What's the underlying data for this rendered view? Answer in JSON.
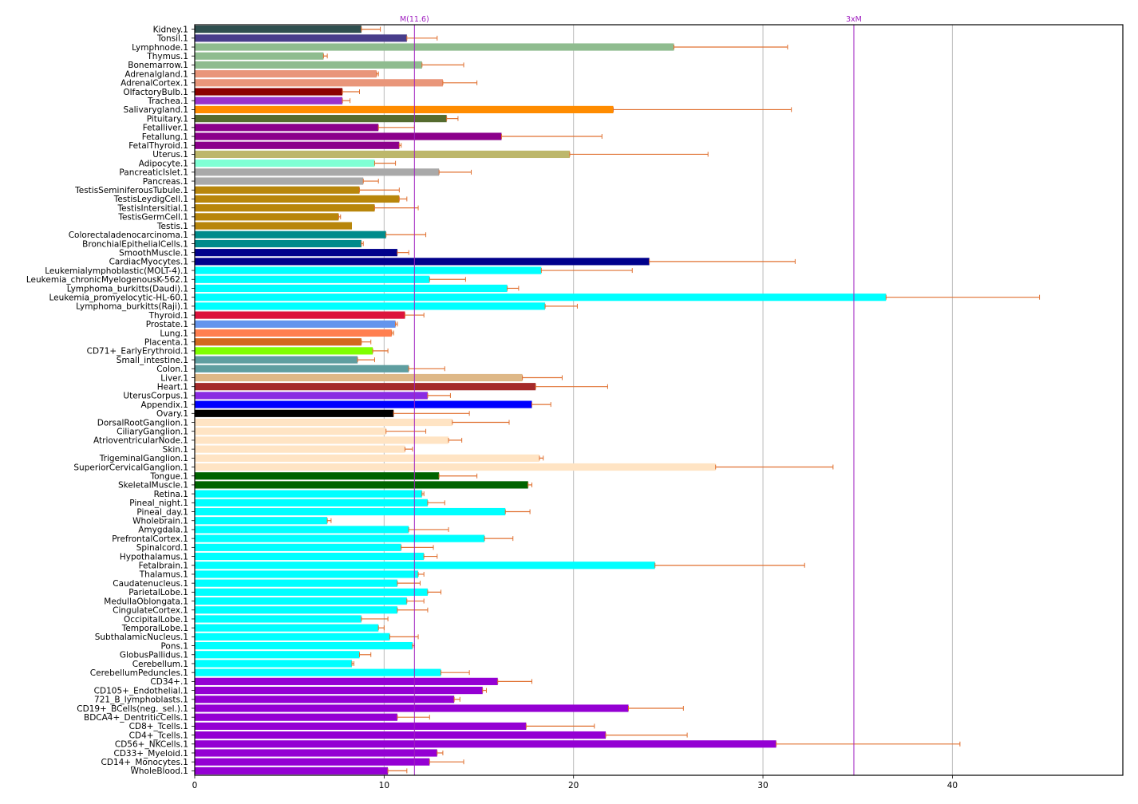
{
  "chart_data": {
    "type": "bar",
    "orientation": "horizontal",
    "title": "",
    "xlabel": "",
    "ylabel": "",
    "xlim": [
      0,
      49
    ],
    "xticks": [
      0,
      10,
      20,
      30,
      40
    ],
    "grid": "vertical",
    "legend": "none",
    "error_bar_color": "#e07030",
    "grid_color": "#bbbbbb",
    "reference_lines": [
      {
        "label": "M(11.6)",
        "value": 11.6,
        "color": "#a020c0"
      },
      {
        "label": "3xM",
        "value": 34.8,
        "color": "#a020c0"
      }
    ],
    "categories": [
      "Kidney.1",
      "Tonsil.1",
      "Lymphnode.1",
      "Thymus.1",
      "Bonemarrow.1",
      "Adrenalgland.1",
      "AdrenalCortex.1",
      "OlfactoryBulb.1",
      "Trachea.1",
      "Salivarygland.1",
      "Pituitary.1",
      "Fetalliver.1",
      "Fetallung.1",
      "FetalThyroid.1",
      "Uterus.1",
      "Adipocyte.1",
      "PancreaticIslet.1",
      "Pancreas.1",
      "TestisSeminiferousTubule.1",
      "TestisLeydigCell.1",
      "TestisIntersitial.1",
      "TestisGermCell.1",
      "Testis.1",
      "Colorectaladenocarcinoma.1",
      "BronchialEpithelialCells.1",
      "SmoothMuscle.1",
      "CardiacMyocytes.1",
      "Leukemialymphoblastic(MOLT-4).1",
      "Leukemia_chronicMyelogenousK-562.1",
      "Lymphoma_burkitts(Daudi).1",
      "Leukemia_promyelocytic-HL-60.1",
      "Lymphoma_burkitts(Raji).1",
      "Thyroid.1",
      "Prostate.1",
      "Lung.1",
      "Placenta.1",
      "CD71+_EarlyErythroid.1",
      "Small_intestine.1",
      "Colon.1",
      "Liver.1",
      "Heart.1",
      "UterusCorpus.1",
      "Appendix.1",
      "Ovary.1",
      "DorsalRootGanglion.1",
      "CiliaryGanglion.1",
      "AtrioventricularNode.1",
      "Skin.1",
      "TrigeminalGanglion.1",
      "SuperiorCervicalGanglion.1",
      "Tongue.1",
      "SkeletalMuscle.1",
      "Retina.1",
      "Pineal_night.1",
      "Pineal_day.1",
      "Wholebrain.1",
      "Amygdala.1",
      "PrefrontalCortex.1",
      "Spinalcord.1",
      "Hypothalamus.1",
      "Fetalbrain.1",
      "Thalamus.1",
      "Caudatenucleus.1",
      "ParietalLobe.1",
      "MedullaOblongata.1",
      "CingulateCortex.1",
      "OccipitalLobe.1",
      "TemporalLobe.1",
      "SubthalamicNucleus.1",
      "Pons.1",
      "GlobusPallidus.1",
      "Cerebellum.1",
      "CerebellumPeduncles.1",
      "CD34+.1",
      "CD105+_Endothelial.1",
      "721_B_lymphoblasts.1",
      "CD19+_BCells(neg._sel.).1",
      "BDCA4+_DentriticCells.1",
      "CD8+_Tcells.1",
      "CD4+_Tcells.1",
      "CD56+_NKCells.1",
      "CD33+_Myeloid.1",
      "CD14+_Monocytes.1",
      "WholeBlood.1"
    ],
    "values": [
      8.8,
      11.2,
      25.3,
      6.8,
      12.0,
      9.6,
      13.1,
      7.8,
      7.8,
      22.1,
      13.3,
      9.7,
      16.2,
      10.8,
      19.8,
      9.5,
      12.9,
      8.9,
      8.7,
      10.8,
      9.5,
      7.6,
      8.3,
      10.1,
      8.8,
      10.7,
      24.0,
      18.3,
      12.4,
      16.5,
      36.5,
      18.5,
      11.1,
      10.6,
      10.4,
      8.8,
      9.4,
      8.6,
      11.3,
      17.3,
      18.0,
      12.3,
      17.8,
      10.5,
      13.6,
      10.1,
      13.4,
      11.1,
      18.2,
      27.5,
      12.9,
      17.6,
      12.0,
      12.3,
      16.4,
      7.0,
      11.3,
      15.3,
      10.9,
      12.1,
      24.3,
      11.8,
      10.7,
      12.3,
      11.2,
      10.7,
      8.8,
      9.7,
      10.3,
      11.5,
      8.7,
      8.3,
      13.0,
      16.0,
      15.2,
      13.7,
      22.9,
      10.7,
      17.5,
      21.7,
      30.7,
      12.8,
      12.4,
      10.2
    ],
    "error_upper": [
      9.8,
      12.8,
      31.3,
      7.0,
      14.2,
      9.7,
      14.9,
      8.7,
      8.2,
      31.5,
      13.9,
      11.6,
      21.5,
      10.9,
      27.1,
      10.6,
      14.6,
      9.7,
      10.8,
      11.2,
      11.8,
      7.7,
      null,
      12.2,
      8.9,
      11.3,
      31.7,
      23.1,
      14.3,
      17.1,
      44.6,
      20.2,
      12.1,
      10.7,
      10.5,
      9.3,
      10.2,
      9.5,
      13.2,
      19.4,
      21.8,
      13.5,
      18.8,
      14.5,
      16.6,
      12.2,
      14.1,
      11.5,
      18.4,
      33.7,
      14.9,
      17.8,
      12.1,
      13.2,
      17.7,
      7.2,
      13.4,
      16.8,
      12.6,
      12.8,
      32.2,
      12.1,
      11.9,
      13.0,
      12.1,
      12.3,
      10.2,
      10.0,
      11.8,
      11.6,
      9.3,
      8.4,
      14.5,
      17.8,
      15.4,
      14.0,
      25.8,
      12.4,
      21.1,
      26.0,
      40.4,
      13.1,
      14.2,
      11.2
    ],
    "colors": [
      "#2f4f4f",
      "#483d8b",
      "#8fbc8f",
      "#8fbc8f",
      "#8fbc8f",
      "#e9967a",
      "#e9967a",
      "#8b0000",
      "#9932cc",
      "#ff8c00",
      "#556b2f",
      "#8b008b",
      "#8b008b",
      "#8b008b",
      "#bdb76b",
      "#7fffd4",
      "#a9a9a9",
      "#a9a9a9",
      "#b8860b",
      "#b8860b",
      "#b8860b",
      "#b8860b",
      "#b8860b",
      "#008b8b",
      "#008b8b",
      "#00008b",
      "#00008b",
      "#00ffff",
      "#00ffff",
      "#00ffff",
      "#00ffff",
      "#00ffff",
      "#dc143c",
      "#6495ed",
      "#ff7f50",
      "#d2691e",
      "#7fff00",
      "#5f9ea0",
      "#5f9ea0",
      "#deb887",
      "#a52a2a",
      "#8a2be2",
      "#0000ff",
      "#000000",
      "#ffe4c4",
      "#ffe4c4",
      "#ffe4c4",
      "#ffe4c4",
      "#ffe4c4",
      "#ffe4c4",
      "#006400",
      "#006400",
      "#00ffff",
      "#00ffff",
      "#00ffff",
      "#00ffff",
      "#00ffff",
      "#00ffff",
      "#00ffff",
      "#00ffff",
      "#00ffff",
      "#00ffff",
      "#00ffff",
      "#00ffff",
      "#00ffff",
      "#00ffff",
      "#00ffff",
      "#00ffff",
      "#00ffff",
      "#00ffff",
      "#00ffff",
      "#00ffff",
      "#00ffff",
      "#9400d3",
      "#9400d3",
      "#9400d3",
      "#9400d3",
      "#9400d3",
      "#9400d3",
      "#9400d3",
      "#9400d3",
      "#9400d3",
      "#9400d3",
      "#9400d3"
    ]
  }
}
